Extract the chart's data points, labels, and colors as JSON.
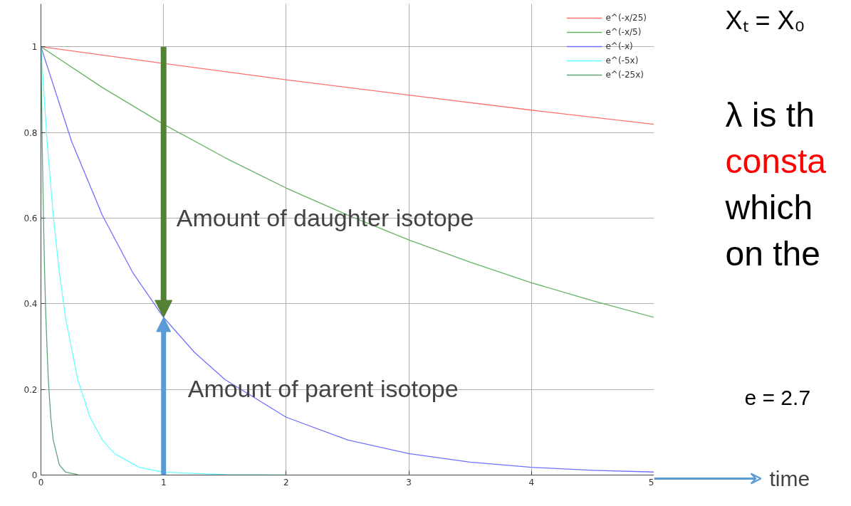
{
  "chart_data": {
    "type": "line",
    "xlim": [
      0,
      5
    ],
    "ylim": [
      0,
      1.1
    ],
    "xticks": [
      0,
      1,
      2,
      3,
      4,
      5
    ],
    "yticks": [
      0,
      0.2,
      0.4,
      0.6,
      0.8,
      1
    ],
    "grid": true,
    "legend": "top right",
    "series": [
      {
        "name": "e^(-x/25)",
        "color": "#ff7070",
        "x": [
          0,
          1,
          2,
          3,
          4,
          5
        ],
        "values": [
          1,
          0.961,
          0.923,
          0.887,
          0.852,
          0.819
        ]
      },
      {
        "name": "e^(-x/5)",
        "color": "#66b366",
        "x": [
          0,
          0.5,
          1,
          1.5,
          2,
          2.5,
          3,
          3.5,
          4,
          4.5,
          5
        ],
        "values": [
          1,
          0.905,
          0.819,
          0.741,
          0.67,
          0.607,
          0.549,
          0.497,
          0.449,
          0.407,
          0.368
        ]
      },
      {
        "name": "e^(-x)",
        "color": "#7070ff",
        "x": [
          0,
          0.25,
          0.5,
          0.75,
          1,
          1.25,
          1.5,
          2,
          2.5,
          3,
          3.5,
          4,
          4.5,
          5
        ],
        "values": [
          1,
          0.779,
          0.607,
          0.472,
          0.368,
          0.287,
          0.223,
          0.135,
          0.082,
          0.05,
          0.03,
          0.018,
          0.011,
          0.007
        ]
      },
      {
        "name": "e^(-5x)",
        "color": "#66ffff",
        "x": [
          0,
          0.05,
          0.1,
          0.15,
          0.2,
          0.3,
          0.4,
          0.5,
          0.6,
          0.8,
          1,
          1.5,
          2
        ],
        "values": [
          1,
          0.779,
          0.607,
          0.472,
          0.368,
          0.223,
          0.135,
          0.082,
          0.05,
          0.018,
          0.007,
          0.001,
          0
        ]
      },
      {
        "name": "e^(-25x)",
        "color": "#5fa37a",
        "x": [
          0,
          0.01,
          0.02,
          0.03,
          0.04,
          0.06,
          0.08,
          0.1,
          0.15,
          0.2,
          0.3
        ],
        "values": [
          1,
          0.779,
          0.607,
          0.472,
          0.368,
          0.223,
          0.135,
          0.082,
          0.024,
          0.007,
          0.001
        ]
      }
    ],
    "annotations": [
      "Amount of daughter isotope",
      "Amount of parent isotope",
      "time",
      "Xₜ = X₀",
      "λ is th",
      "consta",
      "which",
      "on the",
      "e  = 2.7"
    ]
  }
}
